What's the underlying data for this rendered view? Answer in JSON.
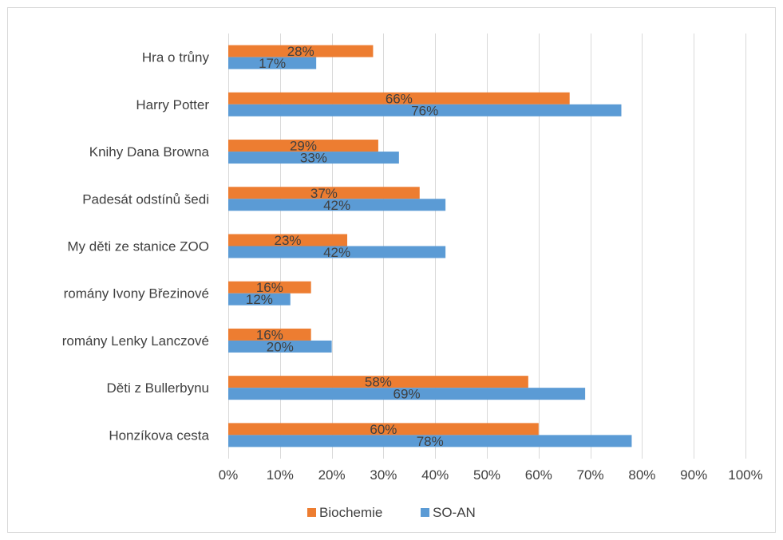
{
  "chart_data": {
    "type": "bar",
    "orientation": "horizontal",
    "categories": [
      "Hra o trůny",
      "Harry Potter",
      "Knihy Dana Browna",
      "Padesát odstínů šedi",
      "My děti ze stanice ZOO",
      "romány Ivony Březinové",
      "romány Lenky Lanczové",
      "Děti z Bullerbynu",
      "Honzíkova cesta"
    ],
    "series": [
      {
        "name": "Biochemie",
        "color": "#ed7d31",
        "values": [
          28,
          66,
          29,
          37,
          23,
          16,
          16,
          58,
          60
        ],
        "labels": [
          "28%",
          "66%",
          "29%",
          "37%",
          "23%",
          "16%",
          "16%",
          "58%",
          "60%"
        ]
      },
      {
        "name": "SO-AN",
        "color": "#5b9bd5",
        "values": [
          17,
          76,
          33,
          42,
          42,
          12,
          20,
          69,
          78
        ],
        "labels": [
          "17%",
          "76%",
          "33%",
          "42%",
          "42%",
          "12%",
          "20%",
          "69%",
          "78%"
        ]
      }
    ],
    "x_ticks": [
      "0%",
      "10%",
      "20%",
      "30%",
      "40%",
      "50%",
      "60%",
      "70%",
      "80%",
      "90%",
      "100%"
    ],
    "xlim": [
      0,
      100
    ],
    "grid": true,
    "legend": "bottom",
    "title": "",
    "xlabel": "",
    "ylabel": ""
  }
}
